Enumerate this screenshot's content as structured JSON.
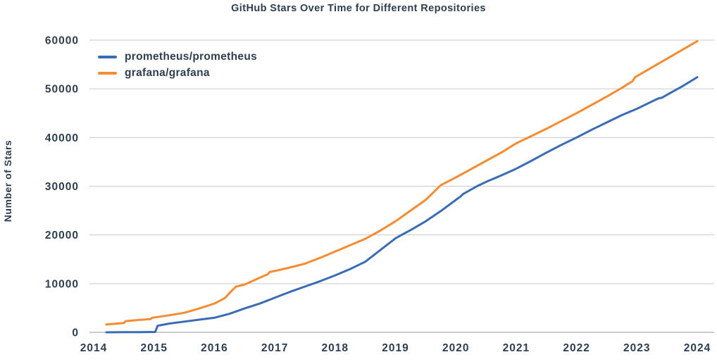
{
  "colors": {
    "text": "#2d3e50",
    "grid": "#c9c9c9",
    "zero_line": "#9a9a9a",
    "background": "#ffffff"
  },
  "chart_data": {
    "type": "line",
    "title": "GitHub Stars Over Time for Different Repositories",
    "xlabel": "",
    "ylabel": "Number of Stars",
    "x_ticks": [
      2014,
      2015,
      2016,
      2017,
      2018,
      2019,
      2020,
      2021,
      2022,
      2023,
      2024
    ],
    "y_ticks": [
      0,
      10000,
      20000,
      30000,
      40000,
      50000,
      60000
    ],
    "xlim": [
      2013.93,
      2024.28
    ],
    "ylim": [
      0,
      60000
    ],
    "grid": "horizontal-only",
    "legend_position": "upper-left",
    "series": [
      {
        "name": "prometheus/prometheus",
        "color": "#3a6cb5",
        "points": [
          [
            2014.21,
            0
          ],
          [
            2014.5,
            30
          ],
          [
            2014.75,
            50
          ],
          [
            2015.02,
            70
          ],
          [
            2015.06,
            1350
          ],
          [
            2015.25,
            1800
          ],
          [
            2015.5,
            2200
          ],
          [
            2015.75,
            2600
          ],
          [
            2016.0,
            3000
          ],
          [
            2016.25,
            3800
          ],
          [
            2016.5,
            4900
          ],
          [
            2016.75,
            5900
          ],
          [
            2017.0,
            7100
          ],
          [
            2017.25,
            8300
          ],
          [
            2017.5,
            9400
          ],
          [
            2017.75,
            10500
          ],
          [
            2018.0,
            11700
          ],
          [
            2018.25,
            13000
          ],
          [
            2018.5,
            14500
          ],
          [
            2018.75,
            16900
          ],
          [
            2019.0,
            19300
          ],
          [
            2019.1,
            20000
          ],
          [
            2019.25,
            21000
          ],
          [
            2019.5,
            22800
          ],
          [
            2019.75,
            24900
          ],
          [
            2020.0,
            27200
          ],
          [
            2020.07,
            27800
          ],
          [
            2020.12,
            28400
          ],
          [
            2020.35,
            30000
          ],
          [
            2020.5,
            30900
          ],
          [
            2020.75,
            32200
          ],
          [
            2021.0,
            33600
          ],
          [
            2021.25,
            35200
          ],
          [
            2021.5,
            36900
          ],
          [
            2021.75,
            38500
          ],
          [
            2022.0,
            40000
          ],
          [
            2022.25,
            41600
          ],
          [
            2022.5,
            43100
          ],
          [
            2022.75,
            44600
          ],
          [
            2023.0,
            45900
          ],
          [
            2023.2,
            47100
          ],
          [
            2023.35,
            48000
          ],
          [
            2023.42,
            48200
          ],
          [
            2023.5,
            48800
          ],
          [
            2023.75,
            50500
          ],
          [
            2024.0,
            52400
          ]
        ]
      },
      {
        "name": "grafana/grafana",
        "color": "#f78b31",
        "points": [
          [
            2014.21,
            1600
          ],
          [
            2014.35,
            1750
          ],
          [
            2014.5,
            1900
          ],
          [
            2014.53,
            2300
          ],
          [
            2014.75,
            2550
          ],
          [
            2014.94,
            2700
          ],
          [
            2014.97,
            3000
          ],
          [
            2015.25,
            3500
          ],
          [
            2015.5,
            4000
          ],
          [
            2015.75,
            4900
          ],
          [
            2016.0,
            5900
          ],
          [
            2016.17,
            7000
          ],
          [
            2016.3,
            8700
          ],
          [
            2016.36,
            9400
          ],
          [
            2016.5,
            9800
          ],
          [
            2016.75,
            11200
          ],
          [
            2016.88,
            11900
          ],
          [
            2016.92,
            12400
          ],
          [
            2017.0,
            12600
          ],
          [
            2017.25,
            13300
          ],
          [
            2017.5,
            14100
          ],
          [
            2017.75,
            15300
          ],
          [
            2018.0,
            16600
          ],
          [
            2018.25,
            17900
          ],
          [
            2018.5,
            19200
          ],
          [
            2018.75,
            20900
          ],
          [
            2019.0,
            22800
          ],
          [
            2019.25,
            25000
          ],
          [
            2019.5,
            27200
          ],
          [
            2019.75,
            30200
          ],
          [
            2020.0,
            31800
          ],
          [
            2020.25,
            33500
          ],
          [
            2020.5,
            35200
          ],
          [
            2020.75,
            36900
          ],
          [
            2021.0,
            38800
          ],
          [
            2021.25,
            40300
          ],
          [
            2021.5,
            41800
          ],
          [
            2021.75,
            43400
          ],
          [
            2022.0,
            45000
          ],
          [
            2022.25,
            46700
          ],
          [
            2022.5,
            48400
          ],
          [
            2022.75,
            50200
          ],
          [
            2022.93,
            51600
          ],
          [
            2022.97,
            52400
          ],
          [
            2023.0,
            52600
          ],
          [
            2023.25,
            54400
          ],
          [
            2023.5,
            56200
          ],
          [
            2023.75,
            58000
          ],
          [
            2024.0,
            59800
          ]
        ]
      }
    ]
  }
}
